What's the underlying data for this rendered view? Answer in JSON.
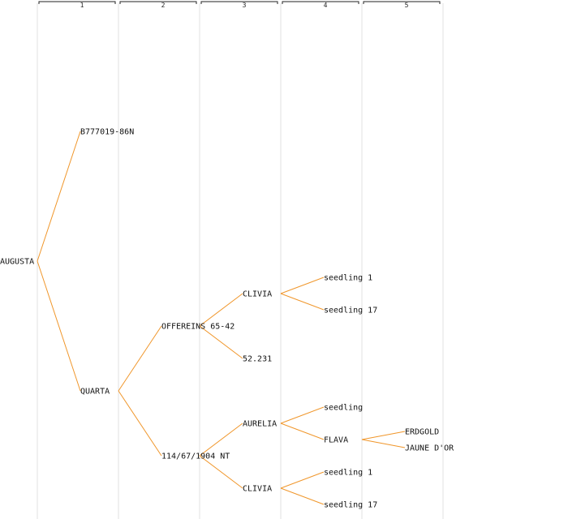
{
  "colors": {
    "edge": "#f0962a",
    "grid": "#e2e2e2",
    "text": "#111111"
  },
  "generations": [
    "1",
    "2",
    "3",
    "4",
    "5"
  ],
  "tree": {
    "label": "AUGUSTA",
    "children": [
      {
        "label": "B777019-86N"
      },
      {
        "label": "QUARTA",
        "children": [
          {
            "label": "OFFEREINS 65-42",
            "children": [
              {
                "label": "CLIVIA",
                "children": [
                  {
                    "label": "seedling 1"
                  },
                  {
                    "label": "seedling 17"
                  }
                ]
              },
              {
                "label": "52.231"
              }
            ]
          },
          {
            "label": "114/67/1904 NT",
            "children": [
              {
                "label": "AURELIA",
                "children": [
                  {
                    "label": "seedling"
                  },
                  {
                    "label": "FLAVA",
                    "children": [
                      {
                        "label": "ERDGOLD"
                      },
                      {
                        "label": "JAUNE D'OR"
                      }
                    ]
                  }
                ]
              },
              {
                "label": "CLIVIA",
                "children": [
                  {
                    "label": "seedling 1"
                  },
                  {
                    "label": "seedling 17"
                  }
                ]
              }
            ]
          }
        ]
      }
    ]
  }
}
